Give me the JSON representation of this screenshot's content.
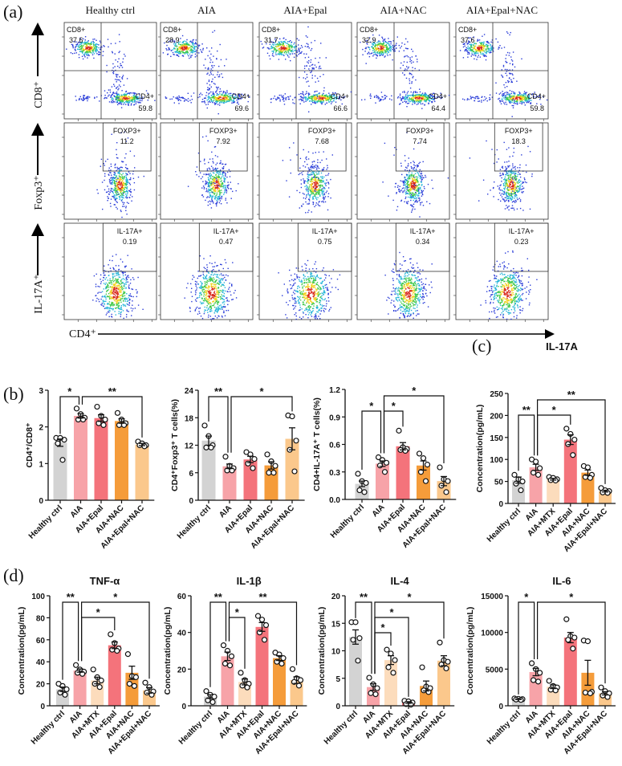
{
  "panel_labels": {
    "a": "(a)",
    "b": "(b)",
    "c": "(c)",
    "d": "(d)"
  },
  "flow": {
    "groups": [
      "Healthy ctrl",
      "AIA",
      "AIA+Epal",
      "AIA+NAC",
      "AIA+Epal+NAC"
    ],
    "row_axis_labels": [
      "CD8⁺",
      "Foxp3⁺",
      "IL-17A⁺"
    ],
    "x_axis_label": "CD4⁺",
    "rows": [
      {
        "gates": [
          {
            "label": "CD8+",
            "values": [
              "37.6",
              "28.9",
              "31.7",
              "32.9",
              "37.6"
            ]
          },
          {
            "label": "CD4+",
            "values": [
              "59.8",
              "69.6",
              "66.6",
              "64.4",
              "59.8"
            ]
          }
        ]
      },
      {
        "gates": [
          {
            "label": "FOXP3+",
            "values": [
              "11.2",
              "7.92",
              "7.68",
              "7.74",
              "18.3"
            ]
          }
        ]
      },
      {
        "gates": [
          {
            "label": "IL-17A+",
            "values": [
              "0.19",
              "0.47",
              "0.75",
              "0.34",
              "0.23"
            ]
          }
        ]
      }
    ],
    "density_colors": [
      "#d8261b",
      "#f2d21f",
      "#3ec94a",
      "#25b5d8",
      "#2a3cd8"
    ]
  },
  "group_colors": {
    "Healthy ctrl": "#d3d3d3",
    "AIA": "#f7a3a8",
    "AIA+MTX": "#fcdcbc",
    "AIA+Epal": "#f4737b",
    "AIA+NAC": "#f59c3a",
    "AIA+Epal+NAC": "#fbc88c"
  },
  "chart_data": [
    {
      "type": "bar",
      "panel": "b",
      "title": "",
      "ylabel": "CD4⁺/CD8⁺",
      "ylim": [
        0,
        3
      ],
      "yticks": [
        "0",
        "1",
        "2",
        "3"
      ],
      "categories": [
        "Healthy ctrl",
        "AIA",
        "AIA+Epal",
        "AIA+NAC",
        "AIA+Epal+NAC"
      ],
      "values": [
        1.57,
        2.3,
        2.24,
        2.16,
        1.52
      ],
      "sem": [
        0.1,
        0.06,
        0.09,
        0.06,
        0.03
      ],
      "points": [
        [
          1.7,
          1.7,
          1.65,
          1.55,
          1.1
        ],
        [
          2.5,
          2.35,
          2.25,
          2.2,
          2.2
        ],
        [
          2.55,
          2.3,
          2.2,
          2.1,
          2.05
        ],
        [
          2.38,
          2.2,
          2.1,
          2.05,
          2.05
        ],
        [
          1.6,
          1.55,
          1.5,
          1.5,
          1.47
        ]
      ],
      "comparisons": [
        {
          "a": 0,
          "b": 1,
          "label": "*",
          "tier": 0
        },
        {
          "a": 1,
          "b": 4,
          "label": "**",
          "tier": 0
        }
      ]
    },
    {
      "type": "bar",
      "panel": "b",
      "title": "",
      "ylabel": "CD4⁺Foxp3⁺ T cells(%)",
      "ylim": [
        0,
        24
      ],
      "yticks": [
        "0",
        "6",
        "12",
        "18",
        "24"
      ],
      "categories": [
        "Healthy ctrl",
        "AIA",
        "AIA+Epal",
        "AIA+NAC",
        "AIA+Epal+NAC"
      ],
      "values": [
        13,
        7.4,
        8.9,
        7.6,
        13.4
      ],
      "sem": [
        1.0,
        0.5,
        0.7,
        0.8,
        2.4
      ],
      "points": [
        [
          16.3,
          14,
          12,
          11.5,
          11.5
        ],
        [
          9.5,
          7.5,
          7,
          6.5,
          6.5
        ],
        [
          10.5,
          10,
          9,
          8,
          7
        ],
        [
          10,
          8.5,
          7.5,
          6,
          6
        ],
        [
          18.5,
          18.3,
          13,
          11,
          6.3
        ]
      ],
      "comparisons": [
        {
          "a": 0,
          "b": 1,
          "label": "**",
          "tier": 0
        },
        {
          "a": 1,
          "b": 4,
          "label": "*",
          "tier": 0
        }
      ]
    },
    {
      "type": "bar",
      "panel": "b",
      "title": "",
      "ylabel": "CD4+IL-17A⁺ T cells(%)",
      "ylim": [
        0,
        1.2
      ],
      "yticks": [
        "0.0",
        "0.3",
        "0.6",
        "0.9",
        "1.2"
      ],
      "categories": [
        "Healthy ctrl",
        "AIA",
        "AIA+Epal",
        "AIA+NAC",
        "AIA+Epal+NAC"
      ],
      "values": [
        0.17,
        0.39,
        0.58,
        0.37,
        0.2
      ],
      "sem": [
        0.03,
        0.03,
        0.04,
        0.05,
        0.05
      ],
      "points": [
        [
          0.28,
          0.2,
          0.18,
          0.1,
          0.08
        ],
        [
          0.46,
          0.43,
          0.4,
          0.37,
          0.3
        ],
        [
          0.75,
          0.57,
          0.55,
          0.54,
          0.53
        ],
        [
          0.5,
          0.45,
          0.38,
          0.3,
          0.2
        ],
        [
          0.35,
          0.22,
          0.2,
          0.15,
          0.08
        ]
      ],
      "comparisons": [
        {
          "a": 0,
          "b": 1,
          "label": "*",
          "tier": 1
        },
        {
          "a": 1,
          "b": 2,
          "label": "*",
          "tier": 1
        },
        {
          "a": 1,
          "b": 4,
          "label": "*",
          "tier": 0
        }
      ]
    },
    {
      "type": "bar",
      "panel": "c",
      "title": "IL-17A",
      "ylabel": "Concentration(pg/mL)",
      "ylim": [
        0,
        250
      ],
      "yticks": [
        "0",
        "50",
        "100",
        "150",
        "200",
        "250"
      ],
      "categories": [
        "Healthy ctrl",
        "AIA",
        "AIA+MTX",
        "AIA+Epal",
        "AIA+NAC",
        "AIA+Epal+NAC"
      ],
      "values": [
        53,
        82,
        55,
        145,
        70,
        28
      ],
      "sem": [
        7,
        7,
        2,
        11,
        6,
        2
      ],
      "points": [
        [
          65,
          55,
          50,
          45,
          30
        ],
        [
          100,
          95,
          80,
          70,
          65
        ],
        [
          60,
          58,
          55,
          53,
          52
        ],
        [
          170,
          158,
          145,
          135,
          110
        ],
        [
          85,
          82,
          65,
          60,
          58
        ],
        [
          35,
          30,
          28,
          25,
          24
        ]
      ],
      "comparisons": [
        {
          "a": 0,
          "b": 1,
          "label": "**",
          "tier": 1
        },
        {
          "a": 1,
          "b": 3,
          "label": "*",
          "tier": 1
        },
        {
          "a": 1,
          "b": 5,
          "label": "**",
          "tier": 0
        }
      ]
    },
    {
      "type": "bar",
      "panel": "d",
      "title": "TNF-α",
      "ylabel": "Concentration(pg/mL)",
      "ylim": [
        0,
        100
      ],
      "yticks": [
        "0",
        "20",
        "40",
        "60",
        "80",
        "100"
      ],
      "categories": [
        "Healthy ctrl",
        "AIA",
        "AIA+MTX",
        "AIA+Epal",
        "AIA+NAC",
        "AIA+Epal+NAC"
      ],
      "values": [
        15,
        32,
        23,
        55,
        30,
        14
      ],
      "sem": [
        2,
        1.5,
        3,
        3,
        6,
        2.5
      ],
      "points": [
        [
          20,
          18,
          15,
          12,
          10
        ],
        [
          37,
          33,
          31,
          30,
          29
        ],
        [
          33,
          26,
          23,
          20,
          17
        ],
        [
          65,
          57,
          52,
          51,
          50
        ],
        [
          47,
          27,
          26,
          20,
          18
        ],
        [
          21,
          17,
          13,
          12,
          10
        ]
      ],
      "comparisons": [
        {
          "a": 0,
          "b": 1,
          "label": "**",
          "tier": 0
        },
        {
          "a": 1,
          "b": 5,
          "label": "*",
          "tier": 0
        },
        {
          "a": 1,
          "b": 3,
          "label": "*",
          "tier": 1
        }
      ]
    },
    {
      "type": "bar",
      "panel": "d",
      "title": "IL-1β",
      "ylabel": "Concentration(pg/mL)",
      "ylim": [
        0,
        60
      ],
      "yticks": [
        "0",
        "20",
        "40",
        "60"
      ],
      "categories": [
        "Healthy ctrl",
        "AIA",
        "AIA+MTX",
        "AIA+Epal",
        "AIA+NAC",
        "AIA+Epal+NAC"
      ],
      "values": [
        5,
        27,
        13,
        43,
        26,
        14
      ],
      "sem": [
        1,
        2.3,
        1.6,
        2.4,
        1.3,
        1.8
      ],
      "points": [
        [
          8,
          6,
          5,
          3,
          2
        ],
        [
          33,
          30,
          27,
          23,
          22
        ],
        [
          18,
          14,
          12,
          11,
          10
        ],
        [
          49,
          47,
          44,
          40,
          36
        ],
        [
          29,
          28,
          26,
          24,
          23
        ],
        [
          20,
          15,
          14,
          13,
          11
        ]
      ],
      "comparisons": [
        {
          "a": 0,
          "b": 1,
          "label": "**",
          "tier": 0
        },
        {
          "a": 1,
          "b": 5,
          "label": "**",
          "tier": 0
        },
        {
          "a": 1,
          "b": 2,
          "label": "*",
          "tier": 1
        }
      ]
    },
    {
      "type": "bar",
      "panel": "d",
      "title": "IL-4",
      "ylabel": "Concentration(pg/mL)",
      "ylim": [
        0,
        20
      ],
      "yticks": [
        "0",
        "5",
        "10",
        "15",
        "20"
      ],
      "categories": [
        "Healthy ctrl",
        "AIA",
        "AIA+MTX",
        "AIA+Epal",
        "AIA+NAC",
        "AIA+Epal+NAC"
      ],
      "values": [
        12.5,
        3.4,
        8.3,
        0.6,
        3.6,
        8.2
      ],
      "sem": [
        1.3,
        0.6,
        0.8,
        0.15,
        0.9,
        0.9
      ],
      "points": [
        [
          15.2,
          15.2,
          12.3,
          12,
          8.2
        ],
        [
          5.1,
          3.9,
          3.2,
          2.3,
          2.1
        ],
        [
          10.2,
          9.5,
          8.3,
          7,
          6
        ],
        [
          0.9,
          0.8,
          0.6,
          0.3,
          0.2
        ],
        [
          7,
          3.5,
          3.2,
          2.8,
          2.5
        ],
        [
          11.5,
          8.3,
          8,
          7.5,
          6.8
        ]
      ],
      "comparisons": [
        {
          "a": 0,
          "b": 1,
          "label": "**",
          "tier": 0
        },
        {
          "a": 1,
          "b": 5,
          "label": "*",
          "tier": 0
        },
        {
          "a": 1,
          "b": 3,
          "label": "*",
          "tier": 1
        },
        {
          "a": 1,
          "b": 2,
          "label": "*",
          "tier": 2
        }
      ]
    },
    {
      "type": "bar",
      "panel": "d",
      "title": "IL-6",
      "ylabel": "Concentration(pg/mL)",
      "ylim": [
        0,
        15000
      ],
      "yticks": [
        "0",
        "5000",
        "10000",
        "15000"
      ],
      "categories": [
        "Healthy ctrl",
        "AIA",
        "AIA+MTX",
        "AIA+Epal",
        "AIA+NAC",
        "AIA+Epal+NAC"
      ],
      "values": [
        900,
        4600,
        2600,
        9300,
        4500,
        1700
      ],
      "sem": [
        40,
        500,
        250,
        700,
        1700,
        220
      ],
      "points": [
        [
          1000,
          950,
          900,
          850,
          800
        ],
        [
          5800,
          5000,
          4500,
          3500,
          3300
        ],
        [
          3400,
          2700,
          2500,
          2200,
          2100
        ],
        [
          11800,
          9500,
          9300,
          9000,
          7800
        ],
        [
          8900,
          8800,
          1900,
          1800,
          1700
        ],
        [
          2500,
          2000,
          1700,
          1400,
          1200
        ]
      ],
      "comparisons": [
        {
          "a": 0,
          "b": 1,
          "label": "*",
          "tier": 0
        },
        {
          "a": 1,
          "b": 5,
          "label": "*",
          "tier": 0
        }
      ]
    }
  ]
}
